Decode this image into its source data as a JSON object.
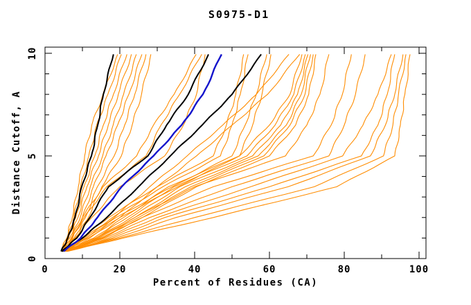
{
  "title": "S0975-D1",
  "colors": {
    "orange": "#FF8C00",
    "black": "#000000",
    "blue": "#1414CC",
    "frame": "#000000",
    "background": "#FFFFFF"
  },
  "chart_data": {
    "type": "line",
    "title": "S0975-D1",
    "xlabel": "Percent of Residues (CA)",
    "ylabel": "Distance Cutoff, A",
    "xlim": [
      0,
      101.85
    ],
    "ylim": [
      0,
      10.3
    ],
    "grid": false,
    "legend": "none",
    "x_major_ticks": [
      0,
      20,
      40,
      60,
      80,
      100
    ],
    "x_minor_ticks": [
      10,
      30,
      50,
      70,
      90
    ],
    "y_major_ticks": [
      0,
      5,
      10
    ],
    "y_minor_ticks": [
      1,
      2,
      3,
      4,
      6,
      7,
      8,
      9
    ],
    "cutoff_levels": [
      0.35,
      1,
      2,
      3.5,
      5,
      6.5,
      8,
      9.95
    ],
    "series_note": "each series lists Percent of Residues (CA) at the shared cutoff_levels",
    "series": [
      {
        "name": "orange-01",
        "color": "orange",
        "x": [
          4.2,
          5.8,
          7.3,
          8.9,
          10.6,
          12.5,
          15.5,
          19.4
        ]
      },
      {
        "name": "orange-02",
        "color": "orange",
        "x": [
          4.3,
          6.0,
          7.7,
          9.5,
          11.7,
          13.8,
          16.8,
          20.4
        ]
      },
      {
        "name": "orange-03",
        "color": "orange",
        "x": [
          4.4,
          6.3,
          8.2,
          10.4,
          13.3,
          15.6,
          18.3,
          21.9
        ]
      },
      {
        "name": "orange-04",
        "color": "orange",
        "x": [
          4.5,
          6.6,
          8.8,
          11.2,
          14.3,
          16.9,
          19.6,
          23.1
        ]
      },
      {
        "name": "orange-05",
        "color": "orange",
        "x": [
          4.6,
          7.0,
          9.4,
          12.1,
          15.4,
          18.2,
          21.0,
          24.4
        ]
      },
      {
        "name": "orange-06",
        "color": "orange",
        "x": [
          4.7,
          7.4,
          10.0,
          12.9,
          16.3,
          19.4,
          22.4,
          25.9
        ]
      },
      {
        "name": "orange-07",
        "color": "orange",
        "x": [
          4.8,
          7.8,
          10.8,
          14.0,
          18.5,
          21.3,
          24.0,
          27.0
        ]
      },
      {
        "name": "orange-08",
        "color": "orange",
        "x": [
          4.9,
          8.2,
          11.6,
          15.2,
          20.4,
          23.3,
          25.8,
          28.3
        ]
      },
      {
        "name": "orange-09",
        "color": "orange",
        "x": [
          4.5,
          7.0,
          10.0,
          15.5,
          24.5,
          29.0,
          34.5,
          40.4
        ]
      },
      {
        "name": "orange-10",
        "color": "orange",
        "x": [
          4.6,
          7.2,
          10.4,
          16.5,
          27.0,
          31.0,
          36.0,
          41.9
        ]
      },
      {
        "name": "orange-11",
        "color": "orange",
        "x": [
          4.6,
          8.0,
          12.5,
          20.0,
          32.0,
          37.0,
          40.5,
          42.8
        ]
      },
      {
        "name": "orange-12",
        "color": "orange",
        "x": [
          4.8,
          10.0,
          17.0,
          30.0,
          45.0,
          48.5,
          51.0,
          53.1
        ]
      },
      {
        "name": "orange-13",
        "color": "orange",
        "x": [
          4.9,
          10.5,
          18.0,
          31.5,
          46.9,
          50.0,
          52.2,
          54.3
        ]
      },
      {
        "name": "orange-14",
        "color": "orange",
        "x": [
          5.0,
          11.0,
          19.0,
          34.0,
          50.0,
          53.5,
          56.5,
          59.3
        ]
      },
      {
        "name": "orange-15",
        "color": "orange",
        "x": [
          5.1,
          11.5,
          20.0,
          35.5,
          52.0,
          55.5,
          58.0,
          60.4
        ]
      },
      {
        "name": "orange-16",
        "color": "orange",
        "x": [
          5.0,
          11.0,
          18.5,
          28.0,
          38.0,
          47.5,
          56.5,
          65.2
        ]
      },
      {
        "name": "orange-17",
        "color": "orange",
        "x": [
          5.1,
          12.0,
          20.0,
          30.0,
          40.5,
          50.0,
          59.5,
          68.1
        ]
      },
      {
        "name": "orange-18",
        "color": "orange",
        "x": [
          5.2,
          13.0,
          21.0,
          33.0,
          52.0,
          60.0,
          65.5,
          68.7
        ]
      },
      {
        "name": "orange-19",
        "color": "orange",
        "x": [
          5.3,
          13.5,
          22.0,
          34.5,
          54.0,
          61.5,
          66.5,
          69.6
        ]
      },
      {
        "name": "orange-20",
        "color": "orange",
        "x": [
          5.4,
          14.0,
          23.0,
          36.0,
          55.5,
          63.0,
          67.5,
          70.3
        ]
      },
      {
        "name": "orange-21",
        "color": "orange",
        "x": [
          5.5,
          14.5,
          24.0,
          37.5,
          57.0,
          64.5,
          68.5,
          71.0
        ]
      },
      {
        "name": "orange-22",
        "color": "orange",
        "x": [
          5.6,
          15.0,
          25.0,
          39.0,
          58.5,
          65.5,
          69.5,
          71.7
        ]
      },
      {
        "name": "orange-23",
        "color": "orange",
        "x": [
          5.7,
          15.5,
          26.0,
          40.5,
          60.0,
          67.0,
          70.5,
          72.4
        ]
      },
      {
        "name": "orange-24",
        "color": "orange",
        "x": [
          5.3,
          14.0,
          24.0,
          40.0,
          64.3,
          70.0,
          73.5,
          75.9
        ]
      },
      {
        "name": "orange-25",
        "color": "orange",
        "x": [
          5.4,
          15.0,
          26.0,
          45.0,
          71.7,
          76.5,
          79.5,
          81.9
        ]
      },
      {
        "name": "orange-26",
        "color": "orange",
        "x": [
          5.5,
          16.0,
          28.0,
          50.0,
          75.9,
          80.0,
          83.0,
          85.6
        ]
      },
      {
        "name": "orange-27",
        "color": "orange",
        "x": [
          5.6,
          17.0,
          30.0,
          55.0,
          79.6,
          85.0,
          89.0,
          92.6
        ]
      },
      {
        "name": "orange-28",
        "color": "orange",
        "x": [
          5.7,
          18.0,
          32.0,
          60.0,
          84.6,
          89.0,
          91.5,
          93.5
        ]
      },
      {
        "name": "orange-29",
        "color": "orange",
        "x": [
          5.8,
          19.0,
          35.0,
          65.0,
          87.0,
          91.0,
          93.5,
          95.7
        ]
      },
      {
        "name": "orange-30",
        "color": "orange",
        "x": [
          5.9,
          20.0,
          40.0,
          72.0,
          90.5,
          93.0,
          94.5,
          96.5
        ]
      },
      {
        "name": "orange-31",
        "color": "orange",
        "x": [
          6.0,
          21.0,
          45.0,
          78.0,
          93.5,
          95.0,
          96.2,
          97.6
        ]
      },
      {
        "name": "black-1",
        "color": "black",
        "x": [
          4.3,
          6.1,
          8.0,
          9.8,
          12.4,
          14.1,
          15.6,
          18.3
        ]
      },
      {
        "name": "black-2",
        "color": "black",
        "x": [
          4.4,
          8.5,
          12.0,
          17.0,
          27.5,
          32.5,
          38.3,
          43.7
        ]
      },
      {
        "name": "black-3",
        "color": "black",
        "x": [
          4.6,
          10.0,
          16.5,
          25.0,
          33.5,
          42.0,
          50.0,
          57.8
        ]
      },
      {
        "name": "blue-1",
        "color": "blue",
        "x": [
          5.0,
          9.5,
          14.0,
          20.5,
          29.0,
          36.5,
          42.2,
          47.2
        ]
      }
    ]
  }
}
